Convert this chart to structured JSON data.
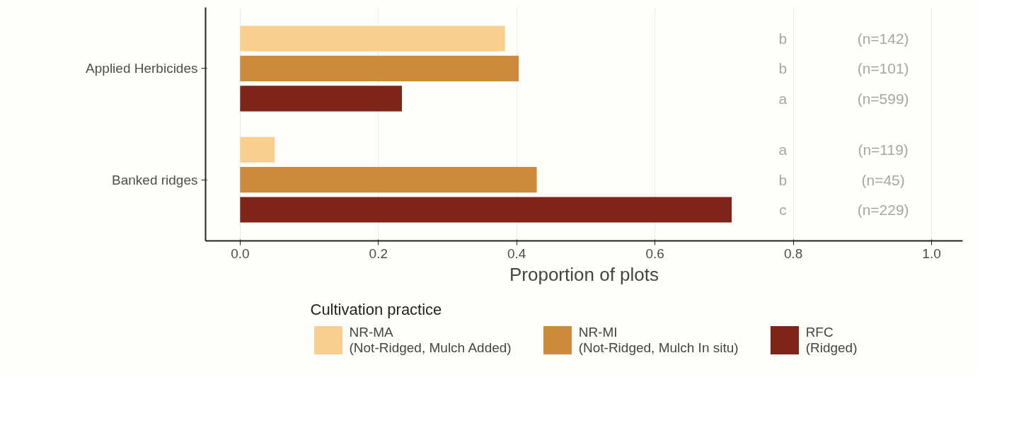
{
  "chart_data": {
    "type": "bar",
    "orientation": "horizontal",
    "xlabel": "Proportion of plots",
    "legend_title": "Cultivation practice",
    "legend": "bottom",
    "grid": "x",
    "categories": [
      "Applied Herbicides",
      "Banked ridges"
    ],
    "series": [
      {
        "name": "NR-MA\n(Not-Ridged, Mulch Added)",
        "color": "#f8cf8f",
        "values": [
          0.383,
          0.05
        ]
      },
      {
        "name": "NR-MI\n(Not-Ridged, Mulch In situ)",
        "color": "#cd8a3c",
        "values": [
          0.403,
          0.429
        ]
      },
      {
        "name": "RFC\n(Ridged)",
        "color": "#7f2418",
        "values": [
          0.234,
          0.711
        ]
      }
    ],
    "xlim": [
      -0.05,
      1.045
    ],
    "xticks": [
      {
        "value": 0,
        "label": "0.0"
      },
      0.2,
      0.4,
      0.6,
      0.8,
      {
        "value": 1,
        "label": "1.0"
      }
    ],
    "annotations": [
      "b",
      "(n=142)",
      "b",
      "(n=101)",
      "a",
      "(n=599)",
      "a",
      "(n=119)",
      "b",
      "(n=45)",
      "c",
      "(n=229)"
    ]
  }
}
